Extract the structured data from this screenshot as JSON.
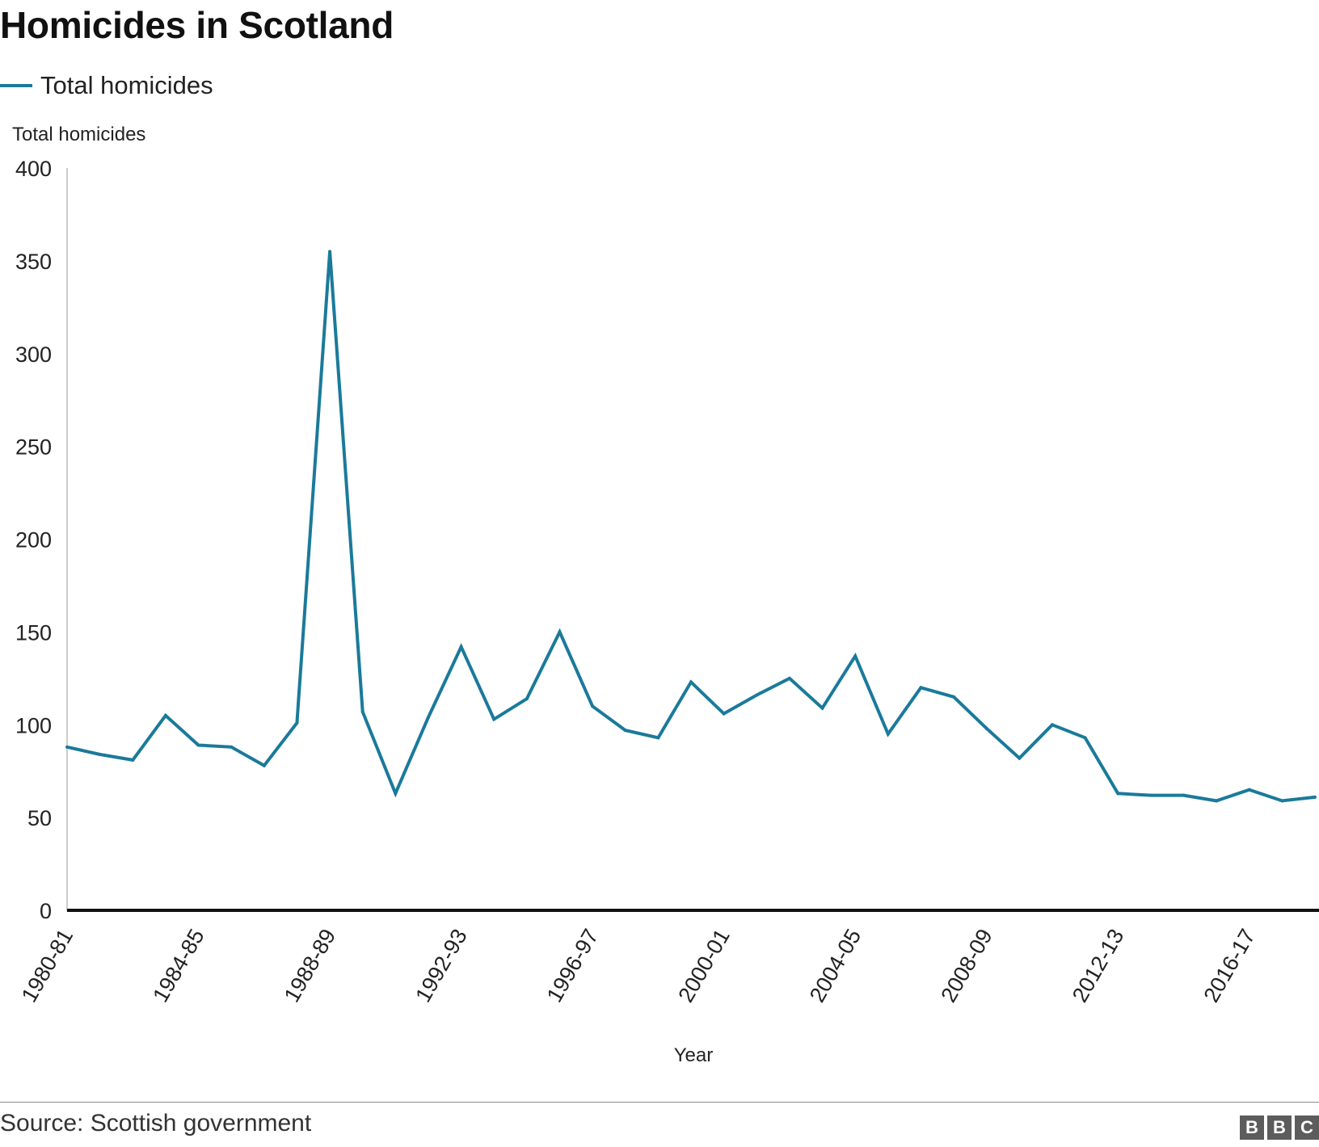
{
  "chart_data": {
    "type": "line",
    "title": "Homicides in Scotland",
    "ylabel": "Total homicides",
    "xlabel": "Year",
    "ylim": [
      0,
      400
    ],
    "yticks": [
      0,
      50,
      100,
      150,
      200,
      250,
      300,
      350,
      400
    ],
    "x_tick_labels": [
      "1980-81",
      "1984-85",
      "1988-89",
      "1992-93",
      "1996-97",
      "2000-01",
      "2004-05",
      "2008-09",
      "2012-13",
      "2016-17"
    ],
    "categories": [
      "1980-81",
      "1981-82",
      "1982-83",
      "1983-84",
      "1984-85",
      "1985-86",
      "1986-87",
      "1987-88",
      "1988-89",
      "1989-90",
      "1990-91",
      "1991-92",
      "1992-93",
      "1993-94",
      "1994-95",
      "1995-96",
      "1996-97",
      "1997-98",
      "1998-99",
      "1999-00",
      "2000-01",
      "2001-02",
      "2002-03",
      "2003-04",
      "2004-05",
      "2005-06",
      "2006-07",
      "2007-08",
      "2008-09",
      "2009-10",
      "2010-11",
      "2011-12",
      "2012-13",
      "2013-14",
      "2014-15",
      "2015-16",
      "2016-17",
      "2017-18",
      "2018-19"
    ],
    "series": [
      {
        "name": "Total homicides",
        "color": "#1a7a9a",
        "values": [
          88,
          84,
          81,
          105,
          89,
          88,
          78,
          101,
          355,
          107,
          63,
          104,
          142,
          103,
          114,
          150,
          110,
          97,
          93,
          123,
          106,
          116,
          125,
          109,
          137,
          95,
          120,
          115,
          98,
          82,
          100,
          93,
          63,
          62,
          62,
          59,
          65,
          59,
          61
        ]
      }
    ],
    "legend": "top-left",
    "grid": false
  },
  "source": "Source: Scottish government",
  "logo": [
    "B",
    "B",
    "C"
  ]
}
